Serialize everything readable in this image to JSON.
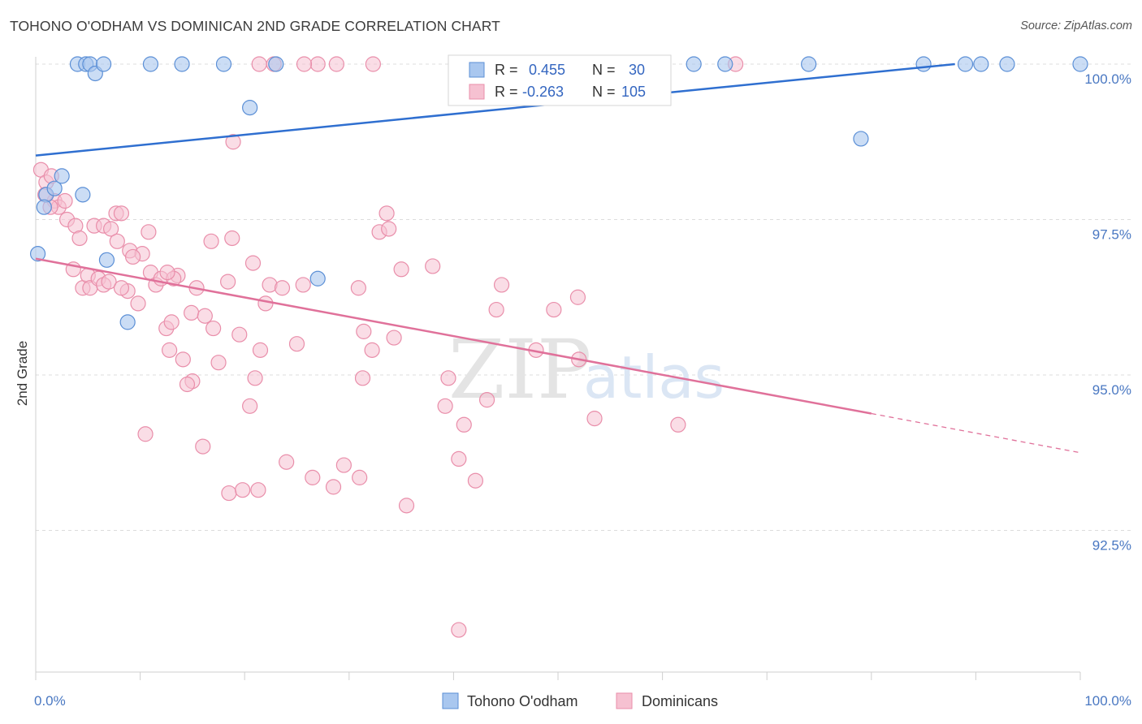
{
  "title": "TOHONO O'ODHAM VS DOMINICAN 2ND GRADE CORRELATION CHART",
  "source": "Source: ZipAtlas.com",
  "watermark": {
    "zip": "ZIP",
    "atlas": "atlas"
  },
  "colors": {
    "blue_fill": "#a9c7ef",
    "blue_stroke": "#5b8fd6",
    "blue_line": "#2f6fd0",
    "pink_fill": "#f6c1d1",
    "pink_stroke": "#e98eaa",
    "pink_line": "#e0719a",
    "axis_label": "#4a78c2",
    "grid": "#dcdcdc"
  },
  "legend": {
    "rows": [
      {
        "r_label": "R =",
        "r_value": "0.455",
        "n_label": "N =",
        "n_value": "30"
      },
      {
        "r_label": "R =",
        "r_value": "-0.263",
        "n_label": "N =",
        "n_value": "105"
      }
    ]
  },
  "chart_data": {
    "type": "scatter",
    "title": "TOHONO O'ODHAM VS DOMINICAN 2ND GRADE CORRELATION CHART",
    "xlabel": "",
    "ylabel": "2nd Grade",
    "xlim": [
      0,
      100
    ],
    "ylim": [
      90.8,
      100.4
    ],
    "x_tick_labels": [
      "0.0%",
      "100.0%"
    ],
    "y_ticks": [
      92.5,
      95.0,
      97.5,
      100.0
    ],
    "y_tick_labels": [
      "92.5%",
      "95.0%",
      "97.5%",
      "100.0%"
    ],
    "grid": true,
    "legend_position": "top-center",
    "series": [
      {
        "name": "Tohono O'odham",
        "color": "#a9c7ef",
        "trend": {
          "x0": 0,
          "y0": 98.53,
          "x1": 88,
          "y1": 100.0
        },
        "points": [
          [
            4.0,
            100.0
          ],
          [
            4.8,
            100.0
          ],
          [
            5.2,
            100.0
          ],
          [
            5.7,
            99.85
          ],
          [
            6.5,
            100.0
          ],
          [
            11,
            100.0
          ],
          [
            14,
            100.0
          ],
          [
            18,
            100.0
          ],
          [
            23,
            100.0
          ],
          [
            20.5,
            99.3
          ],
          [
            66,
            100.0
          ],
          [
            74,
            100.0
          ],
          [
            89,
            100.0
          ],
          [
            90.5,
            100.0
          ],
          [
            93,
            100.0
          ],
          [
            100,
            100.0
          ],
          [
            79,
            98.8
          ],
          [
            1.0,
            97.9
          ],
          [
            1.8,
            98.0
          ],
          [
            2.5,
            98.2
          ],
          [
            0.8,
            97.7
          ],
          [
            4.5,
            97.9
          ],
          [
            0.2,
            96.95
          ],
          [
            6.8,
            96.85
          ],
          [
            27,
            96.55
          ],
          [
            8.8,
            95.85
          ],
          [
            85,
            100.0
          ],
          [
            60,
            100.0
          ],
          [
            63,
            100.0
          ],
          [
            52,
            100.0
          ]
        ]
      },
      {
        "name": "Dominicans",
        "color": "#f6c1d1",
        "trend": {
          "x0": 0,
          "y0": 96.87,
          "x1": 80,
          "y1": 94.38,
          "dash_to_x": 100,
          "dash_to_y": 93.75
        },
        "points": [
          [
            0.5,
            98.3
          ],
          [
            1.0,
            98.1
          ],
          [
            1.5,
            98.2
          ],
          [
            1.8,
            97.8
          ],
          [
            2.2,
            97.7
          ],
          [
            2.8,
            97.8
          ],
          [
            1.4,
            97.7
          ],
          [
            3.0,
            97.5
          ],
          [
            3.8,
            97.4
          ],
          [
            4.2,
            97.2
          ],
          [
            5.6,
            97.4
          ],
          [
            6.5,
            97.4
          ],
          [
            7.2,
            97.35
          ],
          [
            7.7,
            97.6
          ],
          [
            8.2,
            97.6
          ],
          [
            7.8,
            97.15
          ],
          [
            9.0,
            97.0
          ],
          [
            10.2,
            96.95
          ],
          [
            9.3,
            96.9
          ],
          [
            10.8,
            97.3
          ],
          [
            3.6,
            96.7
          ],
          [
            4.5,
            96.4
          ],
          [
            5.0,
            96.6
          ],
          [
            5.2,
            96.4
          ],
          [
            6.0,
            96.55
          ],
          [
            6.5,
            96.45
          ],
          [
            7.0,
            96.5
          ],
          [
            8.8,
            96.35
          ],
          [
            9.8,
            96.15
          ],
          [
            11.0,
            96.65
          ],
          [
            11.5,
            96.45
          ],
          [
            12.0,
            96.55
          ],
          [
            13.6,
            96.6
          ],
          [
            13.2,
            96.55
          ],
          [
            15.4,
            96.4
          ],
          [
            16.8,
            97.15
          ],
          [
            18.4,
            96.5
          ],
          [
            18.8,
            97.2
          ],
          [
            20.8,
            96.8
          ],
          [
            22.4,
            96.45
          ],
          [
            22.0,
            96.15
          ],
          [
            23.6,
            96.4
          ],
          [
            25.6,
            96.45
          ],
          [
            25.0,
            95.5
          ],
          [
            14.9,
            96.0
          ],
          [
            16.2,
            95.95
          ],
          [
            17.0,
            95.75
          ],
          [
            12.5,
            95.75
          ],
          [
            13.0,
            95.85
          ],
          [
            12.8,
            95.4
          ],
          [
            14.1,
            95.25
          ],
          [
            15.0,
            94.9
          ],
          [
            14.5,
            94.85
          ],
          [
            17.5,
            95.2
          ],
          [
            19.5,
            95.65
          ],
          [
            21.0,
            94.95
          ],
          [
            21.5,
            95.4
          ],
          [
            20.5,
            94.5
          ],
          [
            10.5,
            94.05
          ],
          [
            16.0,
            93.85
          ],
          [
            18.5,
            93.1
          ],
          [
            19.8,
            93.15
          ],
          [
            21.3,
            93.15
          ],
          [
            24.0,
            93.6
          ],
          [
            26.5,
            93.35
          ],
          [
            28.5,
            93.2
          ],
          [
            29.5,
            93.55
          ],
          [
            31.0,
            93.35
          ],
          [
            31.3,
            94.95
          ],
          [
            31.4,
            95.7
          ],
          [
            32.2,
            95.4
          ],
          [
            34.3,
            95.6
          ],
          [
            30.9,
            96.4
          ],
          [
            32.9,
            97.3
          ],
          [
            33.6,
            97.6
          ],
          [
            33.8,
            97.35
          ],
          [
            35.0,
            96.7
          ],
          [
            38.0,
            96.75
          ],
          [
            39.2,
            94.5
          ],
          [
            39.5,
            94.95
          ],
          [
            40.5,
            93.65
          ],
          [
            41.0,
            94.2
          ],
          [
            42.1,
            93.3
          ],
          [
            43.2,
            94.6
          ],
          [
            44.1,
            96.05
          ],
          [
            44.6,
            96.45
          ],
          [
            47.9,
            95.4
          ],
          [
            49.6,
            96.05
          ],
          [
            51.9,
            96.25
          ],
          [
            52.0,
            95.25
          ],
          [
            53.5,
            94.3
          ],
          [
            61.5,
            94.2
          ],
          [
            35.5,
            92.9
          ],
          [
            40.5,
            90.9
          ],
          [
            12.6,
            96.65
          ],
          [
            27.0,
            100.0
          ],
          [
            28.8,
            100.0
          ],
          [
            32.3,
            100.0
          ],
          [
            22.8,
            100.0
          ],
          [
            25.7,
            100.0
          ],
          [
            21.4,
            100.0
          ],
          [
            67.0,
            100.0
          ],
          [
            18.9,
            98.75
          ],
          [
            0.9,
            97.9
          ],
          [
            8.2,
            96.4
          ]
        ]
      }
    ]
  },
  "bottom_legend": [
    {
      "label": "Tohono O'odham"
    },
    {
      "label": "Dominicans"
    }
  ]
}
